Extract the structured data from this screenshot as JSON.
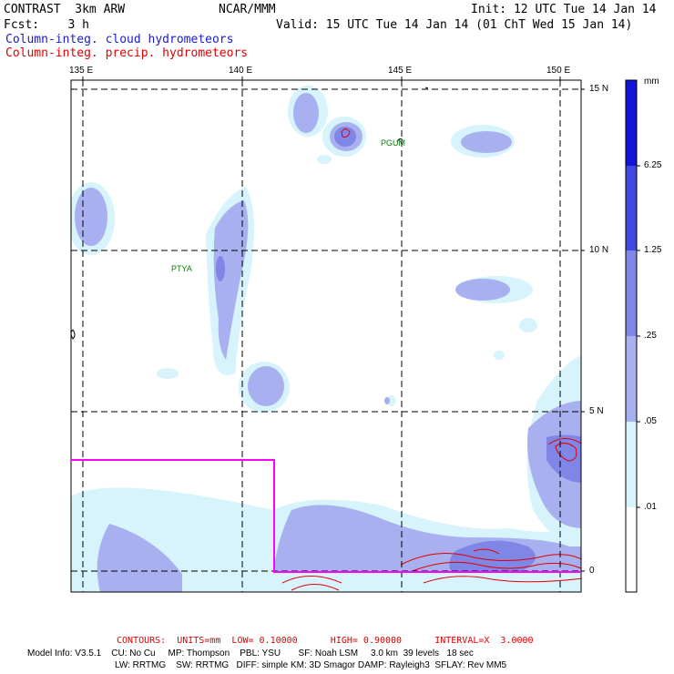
{
  "header": {
    "model": "CONTRAST  3km ARW",
    "org": "NCAR/MMM",
    "init": "Init: 12 UTC Tue 14 Jan 14",
    "fcst": "Fcst:    3 h",
    "valid": "Valid: 15 UTC Tue 14 Jan 14 (01 ChT Wed 15 Jan 14)",
    "field1": "Column-integ. cloud hydrometeors",
    "field2": "Column-integ. precip. hydrometeors"
  },
  "map": {
    "lon_labels": [
      "135 E",
      "140 E",
      "145 E",
      "150 E"
    ],
    "lat_labels": [
      "15 N",
      "10 N",
      "5 N",
      "0"
    ],
    "stations": [
      "PGUM",
      "PTYA"
    ],
    "colors": {
      "frame": "#000000",
      "grid": "#000000",
      "box": "#ff00ff",
      "precip": "#e00000"
    }
  },
  "colorbar": {
    "units": "mm",
    "levels": [
      "6.25",
      "1.25",
      ".25",
      ".05",
      ".01"
    ],
    "colors": [
      "#1414d8",
      "#3f49e0",
      "#7f86e6",
      "#a9b0f0",
      "#d7f3fb",
      "#ffffff"
    ]
  },
  "footer": {
    "contours": "CONTOURS:  UNITS=mm  LOW= 0.10000      HIGH= 0.90000      INTERVAL=X  3.0000",
    "model_info": "Model Info: V3.5.1    CU: No Cu     MP: Thompson    PBL: YSU       SF: Noah LSM     3.0 km  39 levels   18 sec",
    "physics": "LW: RRTMG    SW: RRTMG   DIFF: simple KM: 3D Smagor DAMP: Rayleigh3  SFLAY: Rev MM5"
  }
}
